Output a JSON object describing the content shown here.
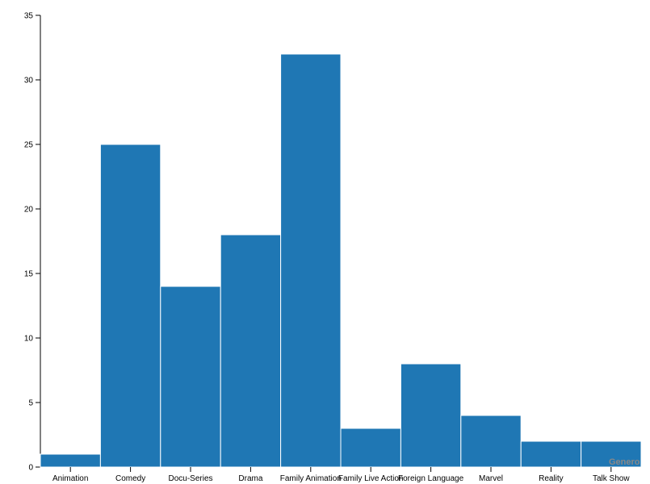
{
  "chart_data": {
    "type": "bar",
    "x_label": "Genero",
    "categories": [
      "Animation",
      "Comedy",
      "Docu-Series",
      "Drama",
      "Family Animation",
      "Family Live Action",
      "Foreign Language",
      "Marvel",
      "Reality",
      "Talk Show"
    ],
    "values": [
      1,
      25,
      14,
      18,
      32,
      3,
      8,
      4,
      2,
      2
    ],
    "color": "#1f77b4",
    "ylim": [
      0,
      35
    ],
    "yticks": [
      0,
      5,
      10,
      15,
      20,
      25,
      30,
      35
    ],
    "grid": false
  }
}
